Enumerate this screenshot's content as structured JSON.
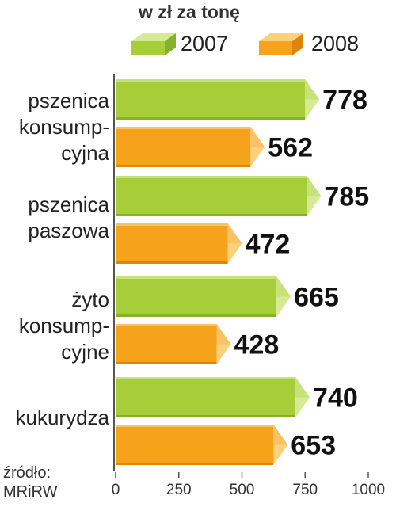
{
  "chart_data": {
    "type": "bar",
    "orientation": "horizontal",
    "title": "w zł za tonę",
    "categories": [
      [
        "pszenica",
        "konsump-",
        "cyjna"
      ],
      [
        "pszenica",
        "paszowa"
      ],
      [
        "żyto",
        "konsump-",
        "cyjne"
      ],
      [
        "kukurydza"
      ]
    ],
    "series": [
      {
        "name": "2007",
        "values": [
          778,
          785,
          665,
          740
        ],
        "color": "#a6ce39"
      },
      {
        "name": "2008",
        "values": [
          562,
          472,
          428,
          653
        ],
        "color": "#f7a21b"
      }
    ],
    "xlim": [
      0,
      1000
    ],
    "xticks": [
      "0",
      "250",
      "500",
      "750",
      "1000"
    ],
    "legend": "top",
    "grid": false
  },
  "source": [
    "źródło:",
    "MRiRW"
  ]
}
